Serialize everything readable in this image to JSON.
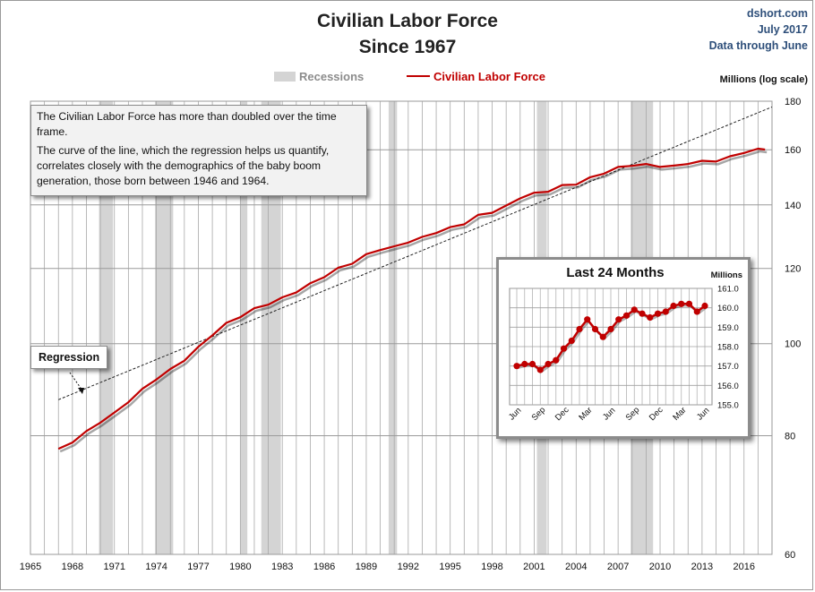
{
  "header": {
    "title_line1": "Civilian Labor Force",
    "title_line2": "Since 1967",
    "source": "dshort.com",
    "date": "July 2017",
    "data_note": "Data through June"
  },
  "legend": {
    "recessions_label": "Recessions",
    "series_label": "Civilian Labor Force",
    "recession_color": "#d4d4d4",
    "series_color": "#c00000"
  },
  "annotations": {
    "text_line1": "The Civilian Labor Force has more than doubled over the time frame.",
    "text_line2": "The curve of the line, which the regression helps us quantify, correlates closely with the demographics of the baby boom generation, those born between 1946 and 1964.",
    "regression_label": "Regression"
  },
  "chart_data": [
    {
      "type": "line",
      "title": "Civilian Labor Force",
      "subtitle": "Since 1967",
      "ylabel": "Millions  (log scale)",
      "yscale": "log",
      "ylim": [
        60,
        180
      ],
      "yticks": [
        60,
        80,
        100,
        120,
        140,
        160,
        180
      ],
      "xlim": [
        1965,
        2018
      ],
      "xticks": [
        1965,
        1968,
        1971,
        1974,
        1977,
        1980,
        1983,
        1986,
        1989,
        1992,
        1995,
        1998,
        2001,
        2004,
        2007,
        2010,
        2013,
        2016
      ],
      "grid": true,
      "legend": "top-center",
      "recessions": [
        [
          1969.9,
          1970.9
        ],
        [
          1973.9,
          1975.2
        ],
        [
          1980.0,
          1980.5
        ],
        [
          1981.5,
          1982.9
        ],
        [
          1990.6,
          1991.2
        ],
        [
          2001.2,
          2001.9
        ],
        [
          2007.9,
          2009.5
        ]
      ],
      "series": [
        {
          "name": "Civilian Labor Force",
          "x": [
            1967.0,
            1968.0,
            1969.0,
            1970.0,
            1971.0,
            1972.0,
            1973.0,
            1974.0,
            1975.0,
            1976.0,
            1977.0,
            1978.0,
            1979.0,
            1980.0,
            1981.0,
            1982.0,
            1983.0,
            1984.0,
            1985.0,
            1986.0,
            1987.0,
            1988.0,
            1989.0,
            1990.0,
            1991.0,
            1992.0,
            1993.0,
            1994.0,
            1995.0,
            1996.0,
            1997.0,
            1998.0,
            1999.0,
            2000.0,
            2001.0,
            2002.0,
            2003.0,
            2004.0,
            2005.0,
            2006.0,
            2007.0,
            2008.0,
            2009.0,
            2010.0,
            2011.0,
            2012.0,
            2013.0,
            2014.0,
            2015.0,
            2016.0,
            2017.0,
            2017.5
          ],
          "values": [
            77.5,
            78.9,
            80.7,
            82.8,
            84.4,
            87.0,
            89.4,
            91.9,
            93.8,
            96.2,
            99.0,
            102.3,
            104.9,
            106.9,
            108.7,
            110.2,
            111.6,
            113.5,
            115.5,
            117.8,
            119.9,
            121.7,
            123.9,
            125.8,
            126.3,
            128.1,
            129.2,
            131.1,
            132.3,
            133.9,
            136.3,
            137.7,
            139.4,
            142.6,
            143.8,
            144.9,
            146.5,
            147.4,
            149.3,
            151.4,
            153.1,
            154.3,
            154.2,
            153.9,
            153.6,
            155.0,
            155.4,
            155.9,
            157.1,
            159.2,
            160.0,
            160.1
          ]
        },
        {
          "name": "Regression",
          "x": [
            1967.0,
            2018.0
          ],
          "values": [
            87.3,
            177.5
          ]
        }
      ]
    },
    {
      "type": "line",
      "title": "Last 24 Months",
      "ylabel": "Millions",
      "ylim": [
        155.0,
        161.0
      ],
      "yticks": [
        155.0,
        156.0,
        157.0,
        158.0,
        159.0,
        160.0,
        161.0
      ],
      "categories": [
        "Jun",
        "",
        "",
        "Sep",
        "",
        "",
        "Dec",
        "",
        "",
        "Mar",
        "",
        "",
        "Jun",
        "",
        "",
        "Sep",
        "",
        "",
        "Dec",
        "",
        "",
        "Mar",
        "",
        "",
        "Jun"
      ],
      "xtick_labels": [
        "Jun",
        "Sep",
        "Dec",
        "Mar",
        "Jun",
        "Sep",
        "Dec",
        "Mar",
        "Jun"
      ],
      "grid": true,
      "series": [
        {
          "name": "Civilian Labor Force",
          "values": [
            157.0,
            157.1,
            157.1,
            156.8,
            157.1,
            157.3,
            157.9,
            158.3,
            158.9,
            159.4,
            158.9,
            158.5,
            158.9,
            159.4,
            159.6,
            159.9,
            159.7,
            159.5,
            159.7,
            159.8,
            160.1,
            160.2,
            160.2,
            159.8,
            160.1
          ]
        }
      ]
    }
  ]
}
